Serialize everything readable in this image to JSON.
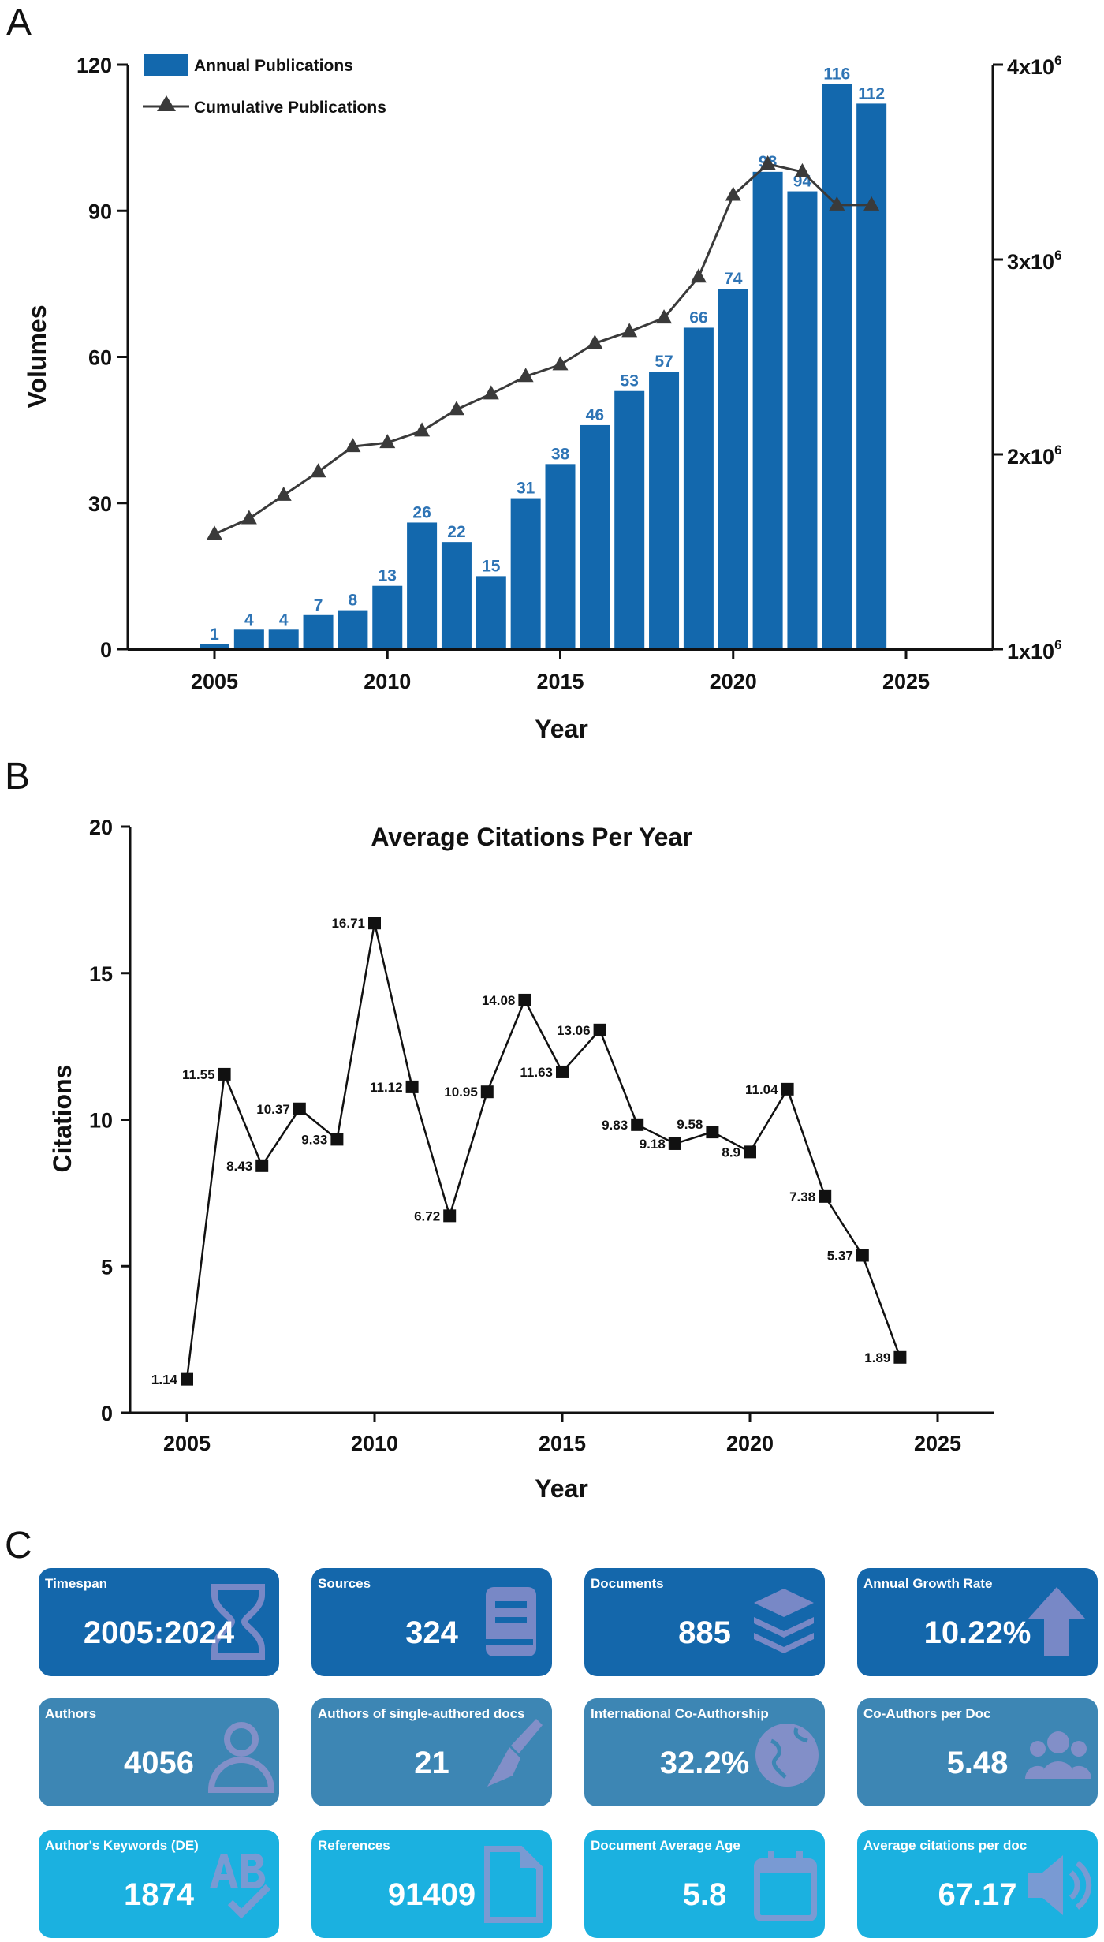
{
  "panels": {
    "a": "A",
    "b": "B",
    "c": "C"
  },
  "colors": {
    "bar": "#1368ad",
    "bar_label": "#2e74b5",
    "line": "#3a3a3a",
    "row1": "#1467ab",
    "row2": "#3d86b4",
    "row3": "#1bb1e0",
    "icon": "#9a93cf"
  },
  "chart_data": [
    {
      "type": "bar",
      "panel": "A",
      "title": "",
      "xlabel": "Year",
      "ylabel": "Volumes",
      "xlim": [
        2002.8,
        2027.8
      ],
      "ylim": [
        0,
        120
      ],
      "y2lim": [
        1000000,
        4000000
      ],
      "x_ticks": [
        2005,
        2010,
        2015,
        2020,
        2025
      ],
      "y_ticks": [
        0,
        30,
        60,
        90,
        120
      ],
      "y2_ticks": [
        {
          "value": 1000000,
          "base": "1x10",
          "exp": "6"
        },
        {
          "value": 2000000,
          "base": "2x10",
          "exp": "6"
        },
        {
          "value": 3000000,
          "base": "3x10",
          "exp": "6"
        },
        {
          "value": 4000000,
          "base": "4x10",
          "exp": "6"
        }
      ],
      "legend": {
        "position": "top-left",
        "entries": [
          "Annual Publications",
          "Cumulative Publications"
        ]
      },
      "categories": [
        2005,
        2006,
        2007,
        2008,
        2009,
        2010,
        2011,
        2012,
        2013,
        2014,
        2015,
        2016,
        2017,
        2018,
        2019,
        2020,
        2021,
        2022,
        2023,
        2024
      ],
      "series": [
        {
          "name": "Annual Publications",
          "type": "bar",
          "axis": "left",
          "values": [
            1,
            4,
            4,
            7,
            8,
            13,
            26,
            22,
            15,
            31,
            38,
            46,
            53,
            57,
            66,
            74,
            98,
            94,
            116,
            112
          ]
        },
        {
          "name": "Cumulative Publications",
          "type": "line",
          "axis": "right",
          "marker": "triangle",
          "values": [
            1590000,
            1670000,
            1790000,
            1910000,
            2040000,
            2060000,
            2120000,
            2230000,
            2310000,
            2400000,
            2460000,
            2570000,
            2630000,
            2700000,
            2910000,
            3330000,
            3490000,
            3450000,
            3280000,
            3280000
          ]
        }
      ]
    },
    {
      "type": "line",
      "panel": "B",
      "title": "Average Citations Per Year",
      "xlabel": "Year",
      "ylabel": "Citations",
      "xlim": [
        2003.5,
        2026.5
      ],
      "ylim": [
        0,
        20
      ],
      "x_ticks": [
        2005,
        2010,
        2015,
        2020,
        2025
      ],
      "y_ticks": [
        0,
        5,
        10,
        15,
        20
      ],
      "x": [
        2005,
        2006,
        2007,
        2008,
        2009,
        2010,
        2011,
        2012,
        2013,
        2014,
        2015,
        2016,
        2017,
        2018,
        2019,
        2020,
        2021,
        2022,
        2023,
        2024
      ],
      "series": [
        {
          "name": "Average Citations Per Year",
          "marker": "square",
          "values": [
            1.14,
            11.55,
            8.43,
            10.37,
            9.33,
            16.71,
            11.12,
            6.72,
            10.95,
            14.08,
            11.63,
            13.06,
            9.83,
            9.18,
            9.58,
            8.9,
            11.04,
            7.38,
            5.37,
            1.89
          ],
          "labels": [
            "1.14",
            "11.55",
            "8.43",
            "10.37",
            "9.33",
            "16.71",
            "11.12",
            "6.72",
            "10.95",
            "14.08",
            "11.63",
            "13.06",
            "9.83",
            "9.18",
            "9.58",
            "8.9",
            "11.04",
            "7.38",
            "5.37",
            "1.89"
          ]
        }
      ]
    }
  ],
  "cards": [
    {
      "label": "Timespan",
      "value": "2005:2024",
      "icon": "hourglass-icon",
      "row": 1
    },
    {
      "label": "Sources",
      "value": "324",
      "icon": "book-icon",
      "row": 1
    },
    {
      "label": "Documents",
      "value": "885",
      "icon": "layers-icon",
      "row": 1
    },
    {
      "label": "Annual Growth Rate",
      "value": "10.22%",
      "icon": "arrow-up-icon",
      "row": 1
    },
    {
      "label": "Authors",
      "value": "4056",
      "icon": "user-icon",
      "row": 2
    },
    {
      "label": "Authors of single-authored docs",
      "value": "21",
      "icon": "pen-icon",
      "row": 2
    },
    {
      "label": "International Co-Authorship",
      "value": "32.2%",
      "icon": "globe-icon",
      "row": 2
    },
    {
      "label": "Co-Authors per Doc",
      "value": "5.48",
      "icon": "users-icon",
      "row": 2
    },
    {
      "label": "Author's Keywords (DE)",
      "value": "1874",
      "icon": "spellcheck-icon",
      "row": 3
    },
    {
      "label": "References",
      "value": "91409",
      "icon": "file-icon",
      "row": 3
    },
    {
      "label": "Document Average Age",
      "value": "5.8",
      "icon": "calendar-icon",
      "row": 3
    },
    {
      "label": "Average citations per doc",
      "value": "67.17",
      "icon": "volume-icon",
      "row": 3
    }
  ]
}
